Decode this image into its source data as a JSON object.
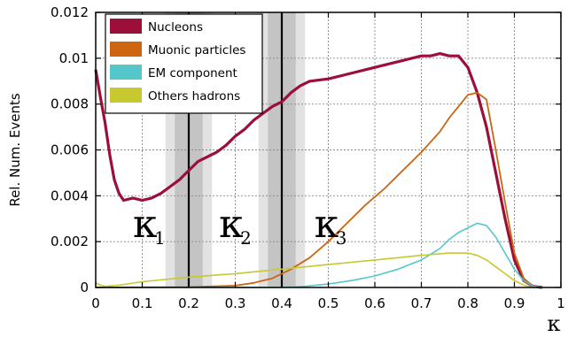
{
  "chart_data": {
    "type": "line",
    "xlabel": "κ",
    "ylabel": "Rel. Num. Events",
    "xlim": [
      0,
      1
    ],
    "ylim": [
      0,
      0.012
    ],
    "xticks": [
      "0",
      "0.1",
      "0.2",
      "0.3",
      "0.4",
      "0.5",
      "0.6",
      "0.7",
      "0.8",
      "0.9",
      "1"
    ],
    "yticks": [
      "0",
      "0.002",
      "0.004",
      "0.006",
      "0.008",
      "0.01",
      "0.012"
    ],
    "grid": true,
    "legend_position": "top-left",
    "series": [
      {
        "name": "Nucleons",
        "color": "#9b0f3a",
        "x": [
          0.0,
          0.01,
          0.02,
          0.03,
          0.04,
          0.05,
          0.06,
          0.08,
          0.1,
          0.12,
          0.14,
          0.16,
          0.18,
          0.2,
          0.22,
          0.24,
          0.26,
          0.28,
          0.3,
          0.32,
          0.34,
          0.36,
          0.38,
          0.4,
          0.42,
          0.44,
          0.46,
          0.5,
          0.54,
          0.58,
          0.62,
          0.66,
          0.7,
          0.72,
          0.74,
          0.76,
          0.78,
          0.8,
          0.82,
          0.84,
          0.86,
          0.88,
          0.9,
          0.92,
          0.94,
          0.96
        ],
        "y": [
          0.0095,
          0.0083,
          0.0072,
          0.0058,
          0.0047,
          0.0041,
          0.0038,
          0.0039,
          0.0038,
          0.0039,
          0.0041,
          0.0044,
          0.0047,
          0.0051,
          0.0055,
          0.0057,
          0.0059,
          0.0062,
          0.0066,
          0.0069,
          0.0073,
          0.0076,
          0.0079,
          0.0081,
          0.0085,
          0.0088,
          0.009,
          0.0091,
          0.0093,
          0.0095,
          0.0097,
          0.0099,
          0.0101,
          0.0101,
          0.0102,
          0.0101,
          0.0101,
          0.0096,
          0.0085,
          0.007,
          0.005,
          0.003,
          0.0012,
          0.0003,
          5e-05,
          0.0
        ]
      },
      {
        "name": "Muonic particles",
        "color": "#cc6611",
        "x": [
          0.0,
          0.2,
          0.3,
          0.34,
          0.38,
          0.4,
          0.42,
          0.46,
          0.5,
          0.54,
          0.58,
          0.62,
          0.66,
          0.7,
          0.74,
          0.76,
          0.78,
          0.8,
          0.82,
          0.84,
          0.86,
          0.88,
          0.9,
          0.92,
          0.94,
          0.96
        ],
        "y": [
          0.0,
          2e-05,
          8e-05,
          0.0002,
          0.0004,
          0.0006,
          0.0008,
          0.0013,
          0.002,
          0.0028,
          0.0036,
          0.0043,
          0.0051,
          0.0059,
          0.0068,
          0.0074,
          0.0079,
          0.0084,
          0.0085,
          0.0082,
          0.006,
          0.0037,
          0.0015,
          0.0004,
          5e-05,
          0.0
        ]
      },
      {
        "name": "EM component",
        "color": "#55c7cc",
        "x": [
          0.0,
          0.4,
          0.45,
          0.5,
          0.55,
          0.6,
          0.65,
          0.7,
          0.74,
          0.76,
          0.78,
          0.8,
          0.82,
          0.84,
          0.86,
          0.88,
          0.9,
          0.92,
          0.94,
          0.96
        ],
        "y": [
          0.0,
          0.0,
          5e-05,
          0.00015,
          0.0003,
          0.0005,
          0.0008,
          0.0012,
          0.0017,
          0.0021,
          0.0024,
          0.0026,
          0.0028,
          0.0027,
          0.0022,
          0.0015,
          0.0008,
          0.0003,
          5e-05,
          0.0
        ]
      },
      {
        "name": "Others hadrons",
        "color": "#c8c830",
        "x": [
          0.0,
          0.01,
          0.02,
          0.05,
          0.1,
          0.2,
          0.3,
          0.4,
          0.5,
          0.6,
          0.7,
          0.76,
          0.8,
          0.82,
          0.84,
          0.86,
          0.88,
          0.9,
          0.92,
          0.94
        ],
        "y": [
          0.0002,
          0.0001,
          5e-05,
          0.0001,
          0.00025,
          0.00045,
          0.0006,
          0.0008,
          0.001,
          0.0012,
          0.0014,
          0.0015,
          0.0015,
          0.0014,
          0.0012,
          0.0009,
          0.0006,
          0.0003,
          0.0001,
          0.0
        ]
      }
    ],
    "vertical_lines": [
      0.2,
      0.4
    ],
    "shaded_bands": [
      {
        "x0": 0.15,
        "x1": 0.25,
        "shade": "light"
      },
      {
        "x0": 0.17,
        "x1": 0.23,
        "shade": "medium"
      },
      {
        "x0": 0.35,
        "x1": 0.45,
        "shade": "light"
      },
      {
        "x0": 0.37,
        "x1": 0.43,
        "shade": "medium"
      }
    ],
    "annotations": [
      {
        "text": "κ",
        "sub": "1",
        "x": 0.08,
        "y": 0.0022
      },
      {
        "text": "κ",
        "sub": "2",
        "x": 0.265,
        "y": 0.0022
      },
      {
        "text": "κ",
        "sub": "3",
        "x": 0.47,
        "y": 0.0022
      }
    ]
  }
}
